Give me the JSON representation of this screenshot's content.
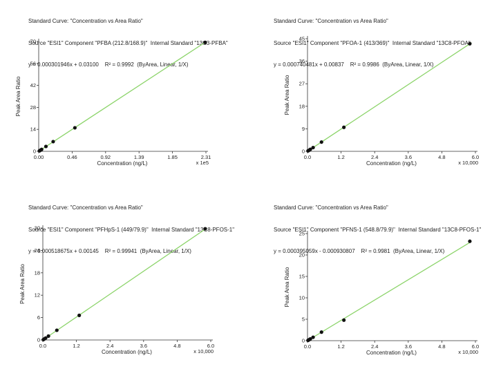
{
  "charts": [
    {
      "header": {
        "line1": "Standard Curve: \"Concentration vs Area Ratio\"",
        "line2": "Source \"ESI1\" Component \"PFBA (212.8/168.9)\"  Internal Standard \"13C3-PFBA\"",
        "line3": "y = 0.000301946x + 0.03100    R² = 0.9992  (ByArea, Linear, 1/X)"
      }
    },
    {
      "header": {
        "line1": "Standard Curve: \"Concentration vs Area Ratio\"",
        "line2": "Source \"ESI1\" Component \"PFOA-1 (413/369)\"  Internal Standard \"13C8-PFOA\"",
        "line3": "y = 0.000740481x + 0.00837    R² = 0.9986  (ByArea, Linear, 1/X)"
      }
    },
    {
      "header": {
        "line1": "Standard Curve: \"Concentration vs Area Ratio\"",
        "line2": "Source \"ESI1\" Component \"PFHpS-1 (449/79.9)\"  Internal Standard \"13C8-PFOS-1\"",
        "line3": "y = 0.000518675x + 0.00145    R² = 0.99941  (ByArea, Linear, 1/X)"
      }
    },
    {
      "header": {
        "line1": "Standard Curve: \"Concentration vs Area Ratio\"",
        "line2": "Source \"ESI1\" Component \"PFNS-1 (548.8/79.9)\"  Internal Standard \"13C8-PFOS-1\"",
        "line3": "y = 0.000395059x - 0.000930807    R² = 0.9981  (ByArea, Linear, 1/X)"
      }
    }
  ],
  "colors": {
    "fit_line": "#8cd46a",
    "point": "#111111",
    "axis": "#333333"
  },
  "chart_data": [
    {
      "type": "scatter",
      "title": "Standard Curve: \"Concentration vs Area Ratio\"",
      "xlabel": "Concentration (ng/L)",
      "ylabel": "Peak Area Ratio",
      "x_multiplier": "x 1e5",
      "xlim": [
        0,
        2.31
      ],
      "ylim": [
        0,
        70
      ],
      "xticks": [
        "0.00",
        "0.46",
        "0.92",
        "1.39",
        "1.85",
        "2.31"
      ],
      "yticks": [
        "0",
        "14",
        "28",
        "42",
        "56",
        "70"
      ],
      "fit": {
        "slope_per_axis_unit": 30.1946,
        "intercept": 0.031
      },
      "x": [
        0.01,
        0.02,
        0.04,
        0.1,
        0.2,
        0.5,
        2.3
      ],
      "y": [
        0.3,
        0.6,
        1.2,
        3.1,
        6.2,
        15.0,
        69.4
      ]
    },
    {
      "type": "scatter",
      "title": "Standard Curve: \"Concentration vs Area Ratio\"",
      "xlabel": "Concentration (ng/L)",
      "ylabel": "Peak Area Ratio",
      "x_multiplier": "x 10,000",
      "xlim": [
        0,
        6.0
      ],
      "ylim": [
        0,
        45
      ],
      "xticks": [
        "0.0",
        "1.2",
        "2.4",
        "3.6",
        "4.8",
        "6.0"
      ],
      "yticks": [
        "0",
        "9",
        "18",
        "27",
        "36",
        "45"
      ],
      "fit": {
        "slope_per_axis_unit": 7.40481,
        "intercept": 0.00837
      },
      "x": [
        0.02,
        0.05,
        0.1,
        0.2,
        0.5,
        1.3,
        5.8
      ],
      "y": [
        0.2,
        0.4,
        0.8,
        1.5,
        3.7,
        9.6,
        43.0
      ]
    },
    {
      "type": "scatter",
      "title": "Standard Curve: \"Concentration vs Area Ratio\"",
      "xlabel": "Concentration (ng/L)",
      "ylabel": "Peak Area Ratio",
      "x_multiplier": "x 10,000",
      "xlim": [
        0,
        6.0
      ],
      "ylim": [
        0,
        30
      ],
      "xticks": [
        "0.0",
        "1.2",
        "2.4",
        "3.6",
        "4.8",
        "6.0"
      ],
      "yticks": [
        "0",
        "6",
        "12",
        "18",
        "24",
        "30"
      ],
      "fit": {
        "slope_per_axis_unit": 5.18675,
        "intercept": 0.00145
      },
      "x": [
        0.02,
        0.05,
        0.1,
        0.2,
        0.5,
        1.3,
        5.8
      ],
      "y": [
        0.1,
        0.26,
        0.52,
        1.04,
        2.6,
        6.6,
        29.8
      ]
    },
    {
      "type": "scatter",
      "title": "Standard Curve: \"Concentration vs Area Ratio\"",
      "xlabel": "Concentration (ng/L)",
      "ylabel": "Peak Area Ratio",
      "x_multiplier": "x 10,000",
      "xlim": [
        0,
        6.0
      ],
      "ylim": [
        0,
        25
      ],
      "xticks": [
        "0.0",
        "1.2",
        "2.4",
        "3.6",
        "4.8",
        "6.0"
      ],
      "yticks": [
        "0",
        "5",
        "10",
        "15",
        "20",
        "25"
      ],
      "fit": {
        "slope_per_axis_unit": 3.95059,
        "intercept": -0.000930807
      },
      "x": [
        0.02,
        0.05,
        0.1,
        0.2,
        0.5,
        1.3,
        5.8
      ],
      "y": [
        0.08,
        0.2,
        0.4,
        0.8,
        2.0,
        4.8,
        23.2
      ]
    }
  ]
}
